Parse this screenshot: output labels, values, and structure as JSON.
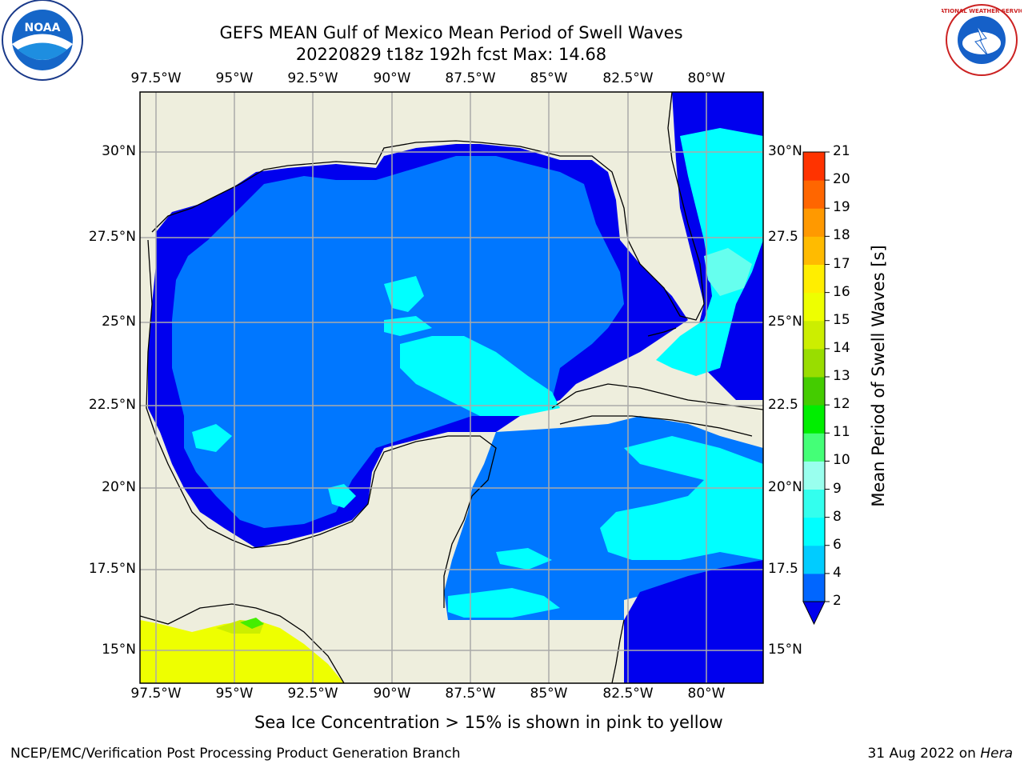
{
  "title_line1": "GEFS MEAN Gulf of Mexico Mean Period of Swell Waves",
  "title_line2": "20220829 t18z 192h fcst   Max: 14.68",
  "lon_labels": [
    "97.5°W",
    "95°W",
    "92.5°W",
    "90°W",
    "87.5°W",
    "85°W",
    "82.5°W",
    "80°W"
  ],
  "lat_labels": [
    "30°N",
    "27.5°N",
    "25°N",
    "22.5°N",
    "20°N",
    "17.5°N",
    "15°N"
  ],
  "lat_labels_right": [
    "30°N",
    "27.5",
    "25°N",
    "22.5",
    "20°N",
    "17.5",
    "15°N"
  ],
  "colorbar": {
    "label": "Mean Period of Swell Waves [s]",
    "ticks": [
      "2",
      "4",
      "6",
      "8",
      "9",
      "10",
      "11",
      "12",
      "13",
      "14",
      "15",
      "16",
      "17",
      "18",
      "19",
      "20",
      "21"
    ],
    "colors": [
      "#0066ff",
      "#00ccff",
      "#00ffff",
      "#33ffee",
      "#99ffee",
      "#44ff77",
      "#00ee00",
      "#44cc00",
      "#99dd00",
      "#ccee00",
      "#eeff00",
      "#ffee00",
      "#ffbb00",
      "#ff9900",
      "#ff6600",
      "#ff3300",
      "#ff0000"
    ],
    "under_color": "#0000ee"
  },
  "colors": {
    "land": "#eeeedd",
    "deep_blue": "#0000ee",
    "blue": "#0077ff",
    "cyan": "#00ffff",
    "light_cyan": "#66ffee",
    "yellow": "#eeff00",
    "grid": "#aaaaaa"
  },
  "subtitle": "Sea Ice Concentration > 15% is shown in pink to yellow",
  "footer_left": "NCEP/EMC/Verification Post Processing Product Generation Branch",
  "footer_date": "31 Aug 2022 on ",
  "footer_host": "Hera",
  "noaa_logo_text": "NOAA",
  "nws_logo_text": "NATIONAL WEATHER SERVICE"
}
